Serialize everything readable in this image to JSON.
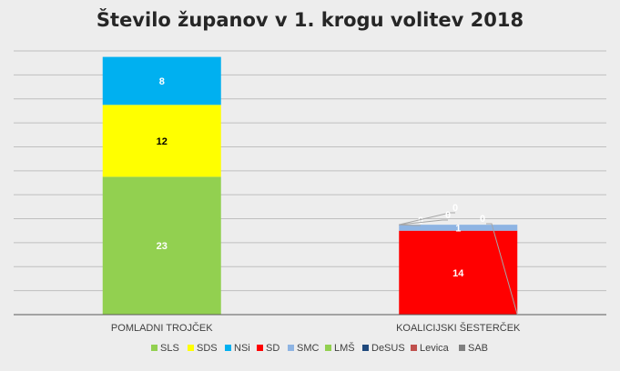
{
  "chart_data": {
    "type": "bar",
    "stacked": true,
    "title": "Število županov v 1. krogu volitev 2018",
    "categories": [
      "POMLADNI TROJČEK",
      "KOALICIJSKI ŠESTERČEK"
    ],
    "ylim": [
      0,
      44
    ],
    "grid": true,
    "legend_position": "bottom",
    "series": [
      {
        "name": "SLS",
        "color": "#92d050",
        "values": [
          0,
          0
        ]
      },
      {
        "name": "SDS",
        "color": "#ffff00",
        "values": [
          12,
          0
        ]
      },
      {
        "name": "NSi",
        "color": "#00b0f0",
        "values": [
          8,
          0
        ]
      },
      {
        "name": "SD",
        "color": "#ff0000",
        "values": [
          0,
          14
        ]
      },
      {
        "name": "SMC",
        "color": "#8eb4e3",
        "values": [
          0,
          1
        ]
      },
      {
        "name": "LMŠ",
        "color": "#92d050",
        "values": [
          23,
          0
        ]
      },
      {
        "name": "DeSUS",
        "color": "#1f497d",
        "values": [
          0,
          0
        ]
      },
      {
        "name": "Levica",
        "color": "#c0504d",
        "values": [
          0,
          0
        ]
      },
      {
        "name": "SAB",
        "color": "#7f7f7f",
        "values": [
          0,
          0
        ]
      }
    ],
    "data_labels": [
      {
        "category": 0,
        "series": "LMŠ",
        "text": "23",
        "color": "#ffffff"
      },
      {
        "category": 0,
        "series": "SDS",
        "text": "12",
        "color": "#000000"
      },
      {
        "category": 0,
        "series": "NSi",
        "text": "8",
        "color": "#ffffff"
      },
      {
        "category": 1,
        "series": "SD",
        "text": "14",
        "color": "#ffffff"
      },
      {
        "category": 1,
        "series": "SMC",
        "text": "1",
        "color": "#ffffff"
      },
      {
        "category": 1,
        "series": "DeSUS",
        "text": "0",
        "color": "#ffffff"
      },
      {
        "category": 1,
        "series": "SAB",
        "text": "0",
        "color": "#ffffff"
      },
      {
        "category": 1,
        "series": "Levica",
        "text": "0",
        "color": "#ffffff"
      },
      {
        "category": 1,
        "series": "SLS",
        "text": "0",
        "color": "#ffffff"
      }
    ]
  }
}
